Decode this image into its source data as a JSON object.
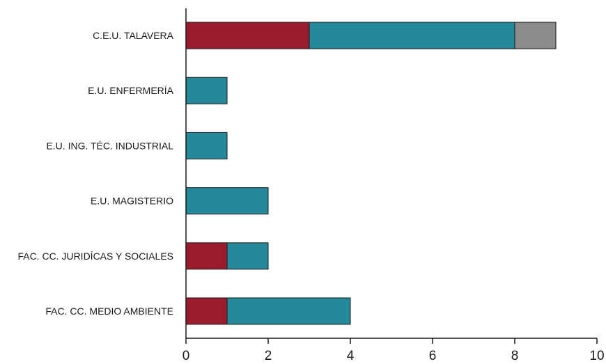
{
  "chart_data": {
    "type": "bar",
    "orientation": "horizontal",
    "stacked": true,
    "title": "",
    "xlabel": "",
    "ylabel": "",
    "xlim": [
      0,
      10
    ],
    "x_ticks": [
      0,
      2,
      4,
      6,
      8,
      10
    ],
    "grid": false,
    "legend": "none",
    "categories": [
      "C.E.U. TALAVERA",
      "E.U. ENFERMERÍA",
      "E.U. ING. TÉC. INDUSTRIAL",
      "E.U. MAGISTERIO",
      "FAC. CC. JURIDÍCAS Y SOCIALES",
      "FAC. CC. MEDIO AMBIENTE"
    ],
    "series": [
      {
        "color": "#9b1c2e",
        "values": [
          3,
          0,
          0,
          0,
          1,
          1
        ]
      },
      {
        "color": "#23899b",
        "values": [
          5,
          1,
          1,
          2,
          1,
          3
        ]
      },
      {
        "color": "#8c8c8c",
        "values": [
          1,
          0,
          0,
          0,
          0,
          0
        ]
      }
    ]
  }
}
